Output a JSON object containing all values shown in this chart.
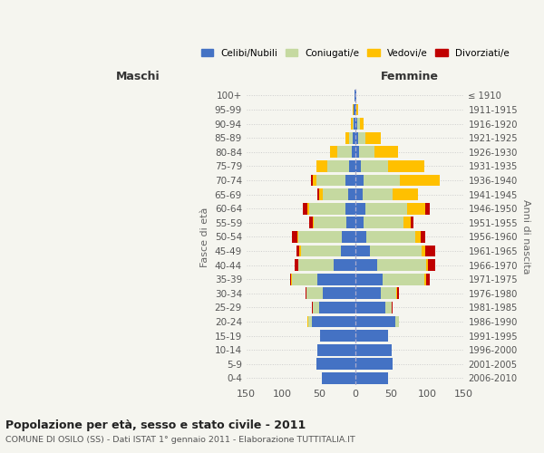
{
  "age_groups": [
    "0-4",
    "5-9",
    "10-14",
    "15-19",
    "20-24",
    "25-29",
    "30-34",
    "35-39",
    "40-44",
    "45-49",
    "50-54",
    "55-59",
    "60-64",
    "65-69",
    "70-74",
    "75-79",
    "80-84",
    "85-89",
    "90-94",
    "95-99",
    "100+"
  ],
  "birth_years": [
    "2006-2010",
    "2001-2005",
    "1996-2000",
    "1991-1995",
    "1986-1990",
    "1981-1985",
    "1976-1980",
    "1971-1975",
    "1966-1970",
    "1961-1965",
    "1956-1960",
    "1951-1955",
    "1946-1950",
    "1941-1945",
    "1936-1940",
    "1931-1935",
    "1926-1930",
    "1921-1925",
    "1916-1920",
    "1911-1915",
    "≤ 1910"
  ],
  "maschi_celibi": [
    46,
    54,
    52,
    48,
    60,
    50,
    45,
    52,
    30,
    20,
    18,
    12,
    14,
    10,
    14,
    8,
    5,
    3,
    2,
    2,
    1
  ],
  "maschi_coniugati": [
    0,
    0,
    0,
    0,
    5,
    8,
    22,
    35,
    48,
    55,
    60,
    45,
    50,
    35,
    40,
    30,
    20,
    5,
    2,
    0,
    0
  ],
  "maschi_vedovi": [
    0,
    0,
    0,
    0,
    1,
    1,
    0,
    1,
    1,
    2,
    2,
    2,
    2,
    5,
    5,
    15,
    10,
    6,
    2,
    1,
    0
  ],
  "maschi_divorziati": [
    0,
    0,
    0,
    0,
    0,
    1,
    2,
    2,
    5,
    4,
    7,
    5,
    6,
    2,
    2,
    0,
    0,
    0,
    0,
    0,
    0
  ],
  "femmine_celibi": [
    45,
    52,
    50,
    45,
    55,
    42,
    35,
    38,
    30,
    20,
    15,
    12,
    14,
    10,
    12,
    8,
    5,
    4,
    3,
    2,
    1
  ],
  "femmine_coniugati": [
    0,
    0,
    0,
    0,
    6,
    8,
    22,
    58,
    68,
    72,
    68,
    55,
    58,
    42,
    50,
    38,
    22,
    10,
    3,
    0,
    0
  ],
  "femmine_vedovi": [
    0,
    0,
    0,
    0,
    0,
    1,
    1,
    2,
    3,
    5,
    8,
    10,
    25,
    35,
    55,
    50,
    32,
    22,
    6,
    2,
    0
  ],
  "femmine_divorziati": [
    0,
    0,
    0,
    0,
    0,
    1,
    2,
    5,
    9,
    13,
    6,
    3,
    6,
    0,
    0,
    0,
    0,
    0,
    0,
    0,
    0
  ],
  "colors": {
    "celibi": "#4472c4",
    "coniugati": "#c5d9a0",
    "vedovi": "#ffc000",
    "divorziati": "#c00000"
  },
  "title": "Popolazione per età, sesso e stato civile - 2011",
  "subtitle": "COMUNE DI OSILO (SS) - Dati ISTAT 1° gennaio 2011 - Elaborazione TUTTITALIA.IT",
  "xlabel_left": "Maschi",
  "xlabel_right": "Femmine",
  "ylabel_left": "Fasce di età",
  "ylabel_right": "Anni di nascita",
  "xlim": 150,
  "bg_color": "#f5f5ef",
  "legend_labels": [
    "Celibi/Nubili",
    "Coniugati/e",
    "Vedovi/e",
    "Divorziati/e"
  ]
}
